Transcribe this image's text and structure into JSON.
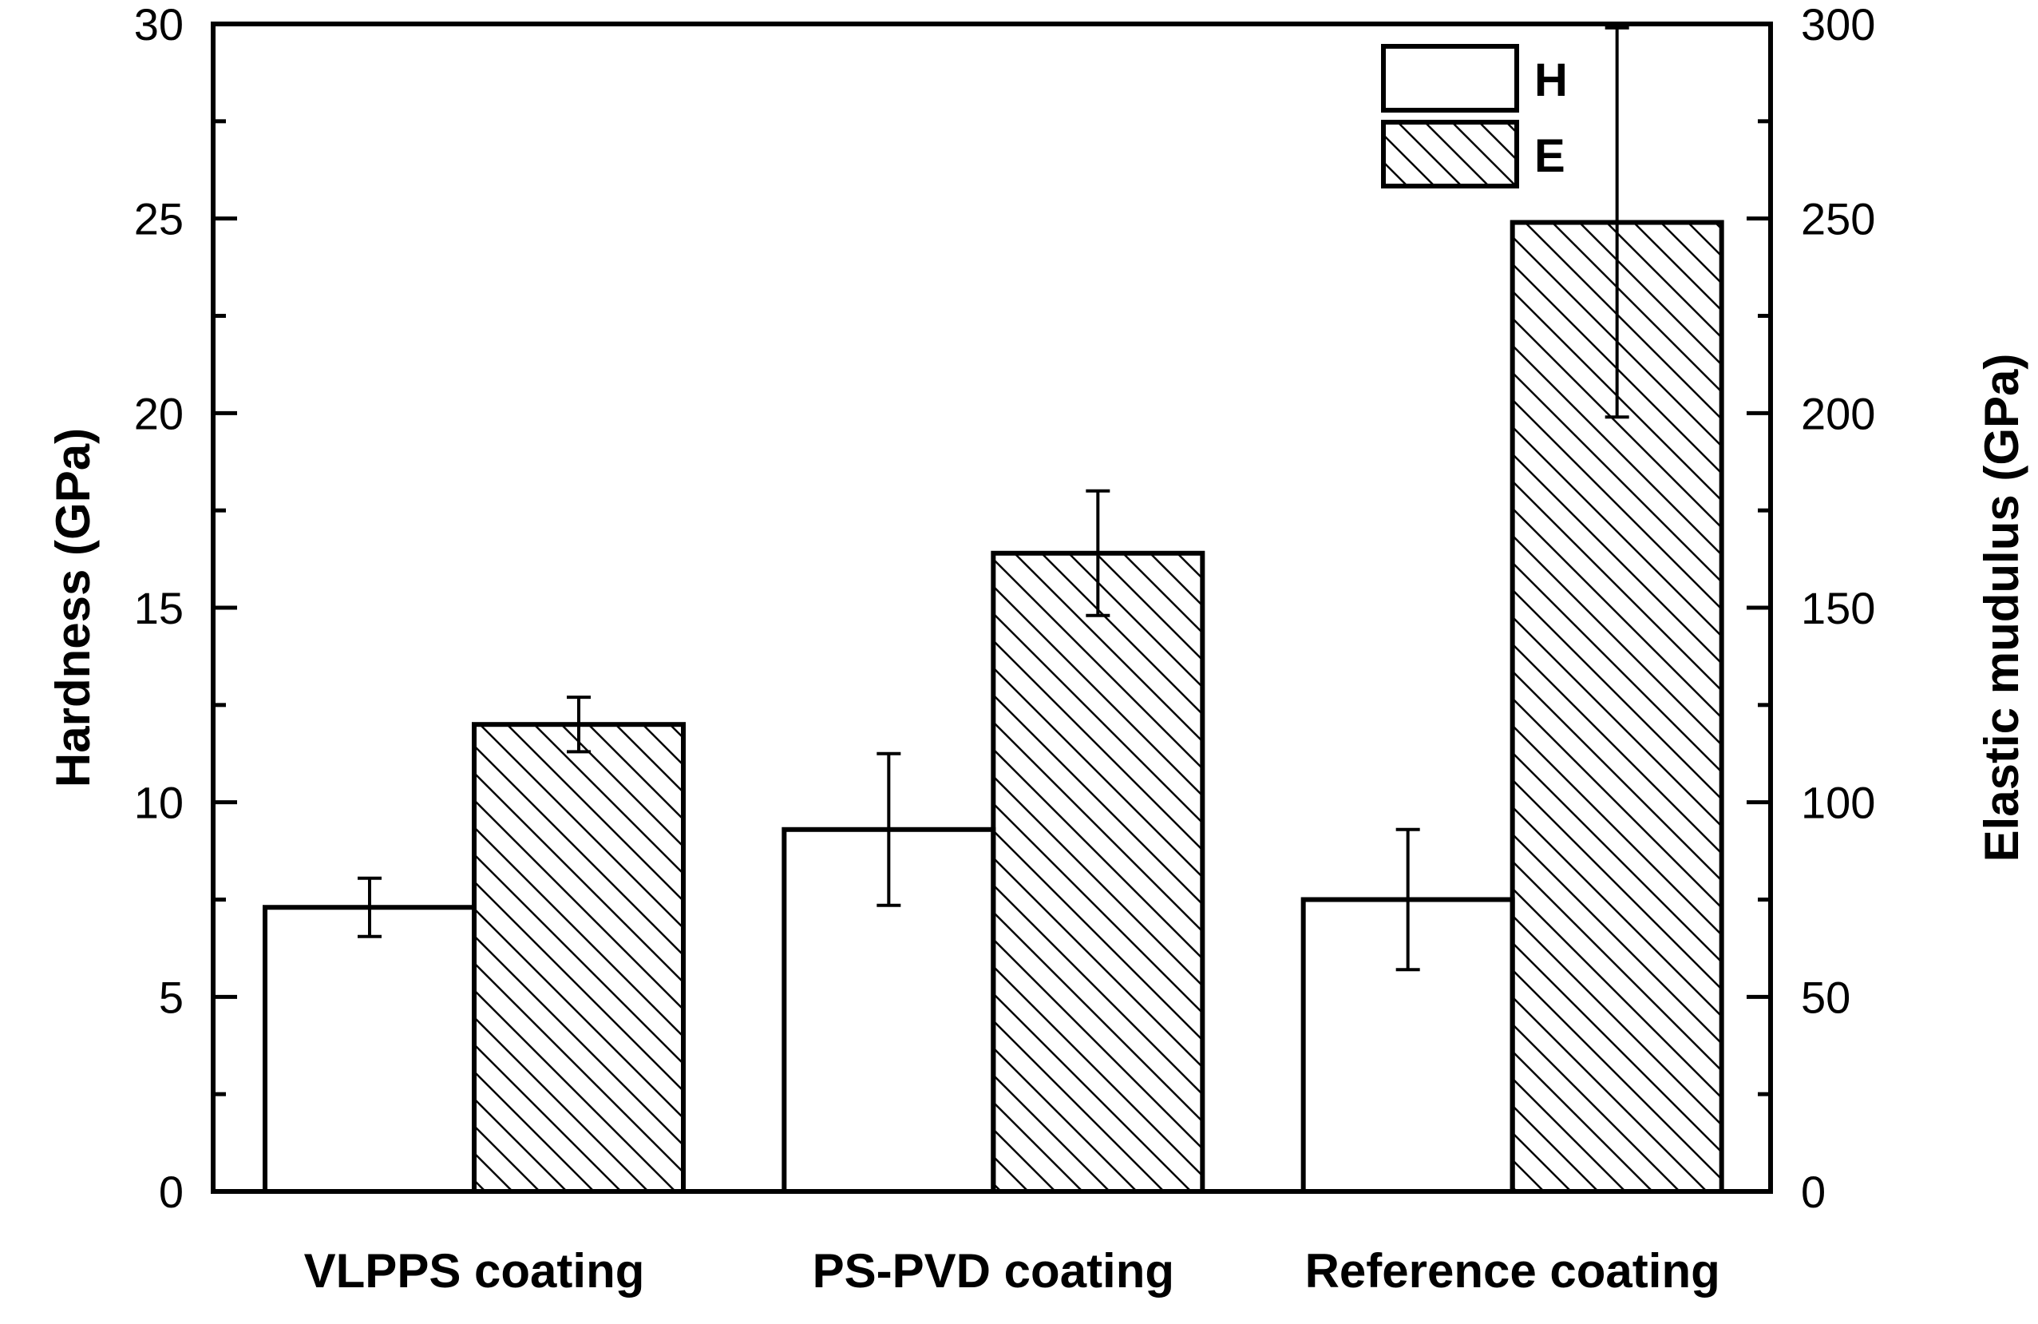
{
  "chart_data": {
    "type": "bar",
    "categories": [
      "VLPPS coating",
      "PS-PVD coating",
      "Reference coating"
    ],
    "series": [
      {
        "name": "H",
        "axis": "left",
        "pattern": "open",
        "values": [
          7.3,
          9.3,
          7.5
        ],
        "errors": [
          0.75,
          1.95,
          1.8
        ]
      },
      {
        "name": "E",
        "axis": "right",
        "pattern": "hatched",
        "values": [
          120,
          164,
          249
        ],
        "errors": [
          7,
          16,
          50
        ]
      }
    ],
    "ylabel_left": "Hardness (GPa)",
    "ylabel_right": "Elastic mudulus (GPa)",
    "ylim_left": [
      0,
      30
    ],
    "ylim_right": [
      0,
      300
    ],
    "yticks_left": [
      "0",
      "5",
      "10",
      "15",
      "20",
      "25",
      "30"
    ],
    "yticks_right": [
      "0",
      "50",
      "100",
      "150",
      "200",
      "250",
      "300"
    ],
    "legend_position": "top-right",
    "grid": false
  }
}
